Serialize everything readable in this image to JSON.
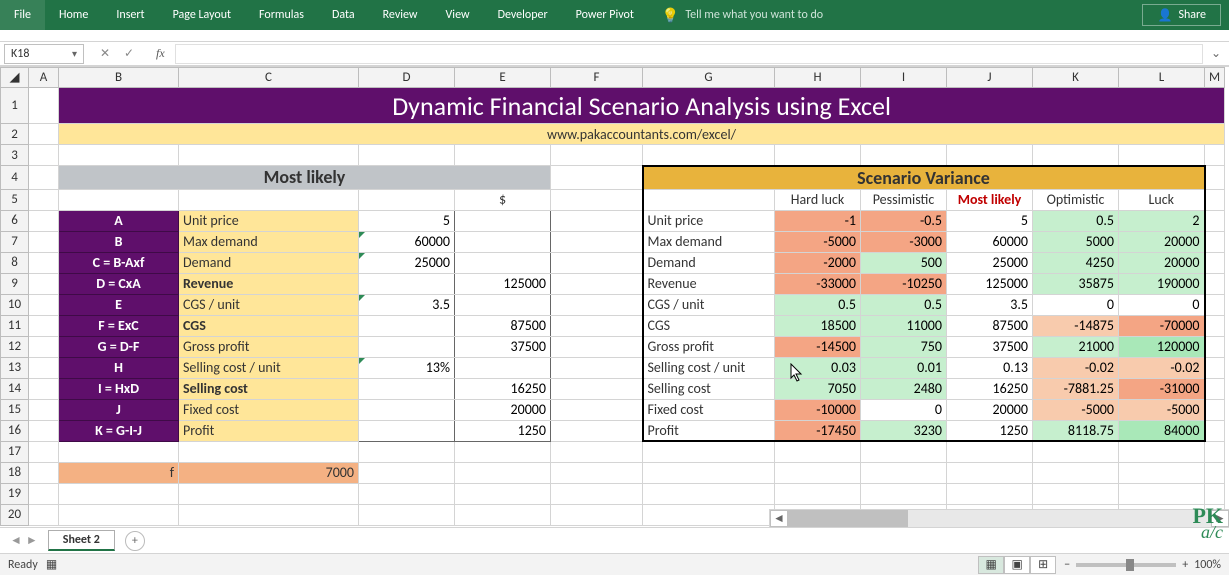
{
  "ribbon": {
    "tabs": [
      "File",
      "Home",
      "Insert",
      "Page Layout",
      "Formulas",
      "Data",
      "Review",
      "View",
      "Developer",
      "Power Pivot"
    ],
    "tell_me": "Tell me what you want to do",
    "share": "Share"
  },
  "name_box": "K18",
  "fx_label": "fx",
  "columns": [
    "A",
    "B",
    "C",
    "D",
    "E",
    "F",
    "G",
    "H",
    "I",
    "J",
    "K",
    "L",
    "M"
  ],
  "row_numbers": [
    1,
    2,
    3,
    4,
    5,
    6,
    7,
    8,
    9,
    10,
    11,
    12,
    13,
    14,
    15,
    16,
    17,
    18,
    19,
    20
  ],
  "title": "Dynamic Financial Scenario Analysis using Excel",
  "subtitle": "www.pakaccountants.com/excel/",
  "section_left": "Most likely",
  "section_right": "Scenario Variance",
  "currency_label": "$",
  "labels": {
    "A": {
      "formula": "A",
      "text": "Unit price",
      "bold": false
    },
    "B": {
      "formula": "B",
      "text": "Max demand",
      "bold": false
    },
    "C": {
      "formula": "C = B-Axf",
      "text": "Demand",
      "bold": false
    },
    "D": {
      "formula": "D = CxA",
      "text": "Revenue",
      "bold": true
    },
    "E": {
      "formula": "E",
      "text": "CGS / unit",
      "bold": false
    },
    "F": {
      "formula": "F = ExC",
      "text": "CGS",
      "bold": true
    },
    "G": {
      "formula": "G = D-F",
      "text": "Gross profit",
      "bold": false
    },
    "H": {
      "formula": "H",
      "text": "Selling cost / unit",
      "bold": false
    },
    "I": {
      "formula": "I = HxD",
      "text": "Selling cost",
      "bold": true
    },
    "J": {
      "formula": "J",
      "text": "Fixed cost",
      "bold": false
    },
    "K": {
      "formula": "K = G-I-J",
      "text": "Profit",
      "bold": false
    }
  },
  "left_col_D": {
    "A": "5",
    "B": "60000",
    "C": "25000",
    "E": "3.5",
    "H": "13%"
  },
  "left_col_E": {
    "D": "125000",
    "F": "87500",
    "G": "37500",
    "I": "16250",
    "J": "20000",
    "K": "1250"
  },
  "f_label": "f",
  "f_value": "7000",
  "scenarios": {
    "headers": [
      "Hard luck",
      "Pessimistic",
      "Most likely",
      "Optimistic",
      "Luck"
    ],
    "highlight_col": 2,
    "rows": {
      "Unit price": {
        "label": "Unit price",
        "vals": [
          "-1",
          "-0.5",
          "5",
          "0.5",
          "2"
        ],
        "cls": [
          "red-m",
          "red-m",
          "",
          "green-l",
          "green-l"
        ]
      },
      "Max demand": {
        "label": "Max demand",
        "vals": [
          "-5000",
          "-3000",
          "60000",
          "5000",
          "20000"
        ],
        "cls": [
          "red-m",
          "red-m",
          "",
          "green-l",
          "green-l"
        ]
      },
      "Demand": {
        "label": "Demand",
        "vals": [
          "-2000",
          "500",
          "25000",
          "4250",
          "20000"
        ],
        "cls": [
          "red-m",
          "green-l",
          "",
          "green-l",
          "green-l"
        ]
      },
      "Revenue": {
        "label": "Revenue",
        "vals": [
          "-33000",
          "-10250",
          "125000",
          "35875",
          "190000"
        ],
        "cls": [
          "red-m",
          "red-m",
          "",
          "green-l",
          "green-l"
        ]
      },
      "CGS / unit": {
        "label": "CGS / unit",
        "vals": [
          "0.5",
          "0.5",
          "3.5",
          "0",
          "0"
        ],
        "cls": [
          "green-l",
          "green-l",
          "",
          "",
          ""
        ]
      },
      "CGS": {
        "label": "CGS",
        "vals": [
          "18500",
          "11000",
          "87500",
          "-14875",
          "-70000"
        ],
        "cls": [
          "green-l",
          "green-l",
          "",
          "red-l",
          "red-m"
        ]
      },
      "Gross profit": {
        "label": "Gross profit",
        "vals": [
          "-14500",
          "750",
          "37500",
          "21000",
          "120000"
        ],
        "cls": [
          "red-m",
          "green-l",
          "",
          "green-l",
          "green-m"
        ]
      },
      "Selling cost / unit": {
        "label": "Selling cost / unit",
        "vals": [
          "0.03",
          "0.01",
          "0.13",
          "-0.02",
          "-0.02"
        ],
        "cls": [
          "green-l",
          "green-l",
          "",
          "red-l",
          "red-l"
        ]
      },
      "Selling cost": {
        "label": "Selling cost",
        "vals": [
          "7050",
          "2480",
          "16250",
          "-7881.25",
          "-31000"
        ],
        "cls": [
          "green-l",
          "green-l",
          "",
          "red-l",
          "red-m"
        ]
      },
      "Fixed cost": {
        "label": "Fixed cost",
        "vals": [
          "-10000",
          "0",
          "20000",
          "-5000",
          "-5000"
        ],
        "cls": [
          "red-m",
          "",
          "",
          "red-l",
          "red-l"
        ]
      },
      "Profit": {
        "label": "Profit",
        "vals": [
          "-17450",
          "3230",
          "1250",
          "8118.75",
          "84000"
        ],
        "cls": [
          "red-m",
          "green-l",
          "",
          "green-l",
          "green-m"
        ]
      }
    }
  },
  "sheet_tabs": [
    "Sheet 2"
  ],
  "status": {
    "ready": "Ready",
    "zoom": "100%"
  },
  "watermark_top": "PK",
  "watermark_bot": "a/c",
  "colors": {
    "excel_green": "#217346",
    "title_purple": "#5f0f6b",
    "subtitle_yellow": "#ffe699",
    "scenario_orange": "#e8b33c",
    "mostlikely_grey": "#c0c4c8",
    "orange_f": "#f4b183",
    "cell_green_light": "#c6efce",
    "cell_green_mid": "#a9e8b8",
    "cell_red_light": "#f8cbad",
    "cell_red_mid": "#f4a584",
    "grid_border": "#d4d4d4"
  }
}
